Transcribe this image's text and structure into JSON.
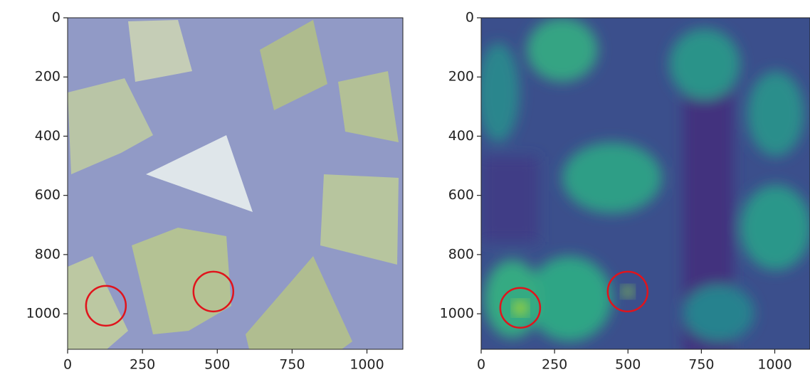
{
  "chart_data": [
    {
      "type": "image",
      "xlim": [
        0,
        1120
      ],
      "ylim": [
        1120,
        0
      ],
      "xticks": [
        0,
        250,
        500,
        750,
        1000
      ],
      "yticks": [
        0,
        200,
        400,
        600,
        800,
        1000
      ],
      "circles": [
        {
          "x": 128,
          "y": 973
        },
        {
          "x": 487,
          "y": 925
        }
      ],
      "circle_color": "#e0141c"
    },
    {
      "type": "image",
      "xlim": [
        0,
        1120
      ],
      "ylim": [
        1120,
        0
      ],
      "xticks": [
        0,
        250,
        500,
        750,
        1000
      ],
      "yticks": [
        0,
        200,
        400,
        600,
        800,
        1000
      ],
      "circles": [
        {
          "x": 133,
          "y": 980
        },
        {
          "x": 499,
          "y": 925
        }
      ],
      "circle_color": "#e0141c"
    }
  ]
}
